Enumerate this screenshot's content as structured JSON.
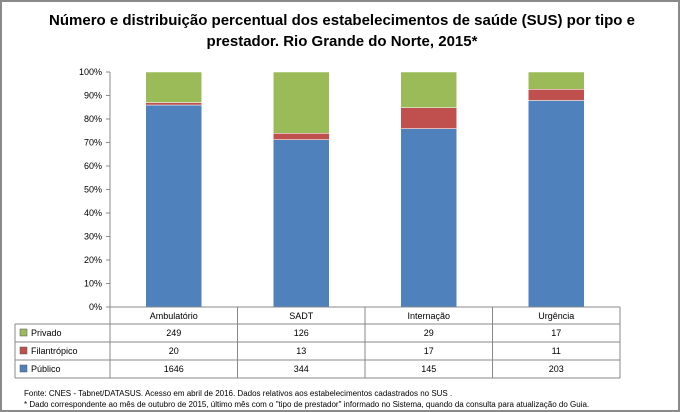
{
  "chart_data": {
    "type": "bar",
    "stacked": "percent",
    "title": "Número e distribuição percentual dos estabelecimentos de saúde (SUS) por tipo e prestador. Rio Grande do Norte, 2015*",
    "categories": [
      "Ambulatório",
      "SADT",
      "Internação",
      "Urgência"
    ],
    "series": [
      {
        "name": "Privado",
        "values": [
          249,
          126,
          29,
          17
        ],
        "color": "#9BBB59"
      },
      {
        "name": "Filantrópico",
        "values": [
          20,
          13,
          17,
          11
        ],
        "color": "#C0504D"
      },
      {
        "name": "Público",
        "values": [
          1646,
          344,
          145,
          203
        ],
        "color": "#4F81BD"
      }
    ],
    "stack_order_bottom_to_top": [
      "Público",
      "Filantrópico",
      "Privado"
    ],
    "yticks": [
      "0%",
      "10%",
      "20%",
      "30%",
      "40%",
      "50%",
      "60%",
      "70%",
      "80%",
      "90%",
      "100%"
    ],
    "ylim": [
      0,
      100
    ],
    "legend": "data-table",
    "grid": false
  },
  "notes": {
    "source": "Fonte: CNES - Tabnet/DATASUS. Acesso em abril de 2016.  Dados relativos aos estabelecimentos cadastrados no SUS .",
    "footnote": "* Dado correspondente ao mês de  outubro de 2015, último mês com o \"tipo de prestador\" informado no Sistema, quando da consulta para atualização do Guia."
  }
}
